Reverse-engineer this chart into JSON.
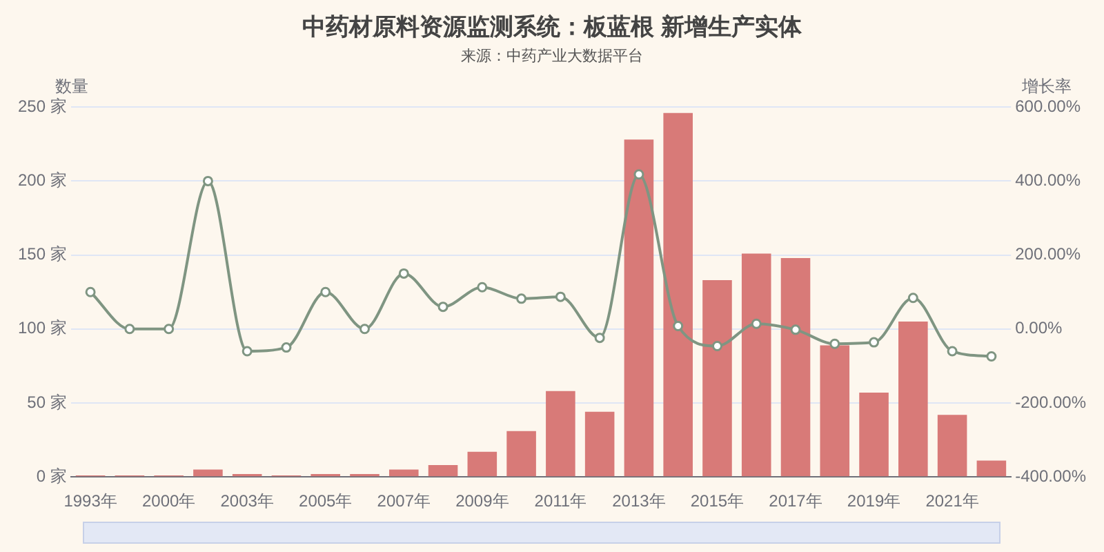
{
  "chart_data": {
    "type": "bar",
    "title": "中药材原料资源监测系统：板蓝根 新增生产实体",
    "subtitle": "来源：中药产业大数据平台",
    "ylabel": "数量",
    "y2label": "增长率",
    "categories": [
      "1993年",
      null,
      "2000年",
      null,
      "2003年",
      null,
      "2005年",
      null,
      "2007年",
      null,
      "2009年",
      null,
      "2011年",
      null,
      "2013年",
      null,
      "2015年",
      null,
      "2017年",
      null,
      "2019年",
      null,
      "2021年",
      null
    ],
    "series": [
      {
        "color": "#d87a78",
        "values": [
          1,
          1,
          1,
          5,
          2,
          1,
          2,
          2,
          5,
          8,
          17,
          31,
          58,
          44,
          228,
          246,
          133,
          151,
          148,
          89,
          57,
          105,
          42,
          11
        ]
      },
      {
        "type": "line",
        "axis": "y2",
        "color": "#7f9582",
        "values": [
          100,
          0,
          0,
          400,
          -60,
          -50,
          100,
          0,
          150,
          60,
          113,
          82,
          87,
          -24,
          418,
          8,
          -46,
          14,
          -2,
          -40,
          -36,
          84,
          -60,
          -74
        ]
      }
    ],
    "ylim": [
      0,
      250
    ],
    "yticks": [
      {
        "value": 0,
        "label": "0 家"
      },
      {
        "value": 50,
        "label": "50 家"
      },
      {
        "value": 100,
        "label": "100 家"
      },
      {
        "value": 150,
        "label": "150 家"
      },
      {
        "value": 200,
        "label": "200 家"
      },
      {
        "value": 250,
        "label": "250 家"
      }
    ],
    "y2lim": [
      -400,
      600
    ],
    "y2ticks": [
      {
        "value": -400,
        "label": "-400.00%"
      },
      {
        "value": -200,
        "label": "-200.00%"
      },
      {
        "value": 0,
        "label": "0.00%"
      },
      {
        "value": 200,
        "label": "200.00%"
      },
      {
        "value": 400,
        "label": "400.00%"
      },
      {
        "value": 600,
        "label": "600.00%"
      }
    ],
    "grid": "y",
    "legend": false,
    "marker": "circle"
  }
}
